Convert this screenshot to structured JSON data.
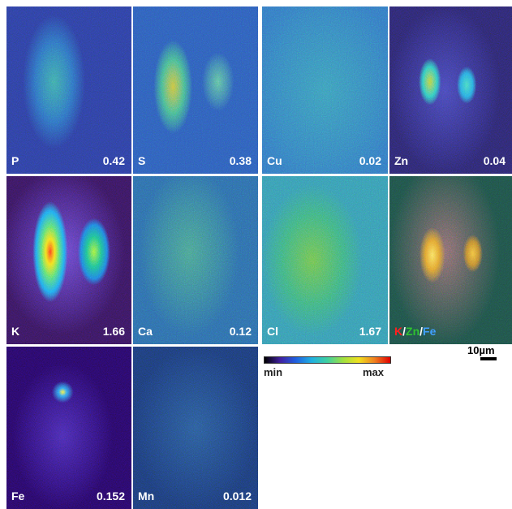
{
  "panels": [
    {
      "element": "P",
      "value": 0.42
    },
    {
      "element": "S",
      "value": 0.38
    },
    {
      "element": "Cu",
      "value": 0.02
    },
    {
      "element": "Zn",
      "value": 0.04
    },
    {
      "element": "K",
      "value": 1.66
    },
    {
      "element": "Ca",
      "value": 0.12
    },
    {
      "element": "Cl",
      "value": 1.67
    },
    {
      "element": "Fe",
      "value": 0.152
    },
    {
      "element": "Mn",
      "value": 0.012
    }
  ],
  "overlay": {
    "parts": [
      "K",
      "Zn",
      "Fe"
    ],
    "separator": "/"
  },
  "colorbar": {
    "min_label": "min",
    "max_label": "max"
  },
  "scale_bar": {
    "label": "10µm"
  }
}
